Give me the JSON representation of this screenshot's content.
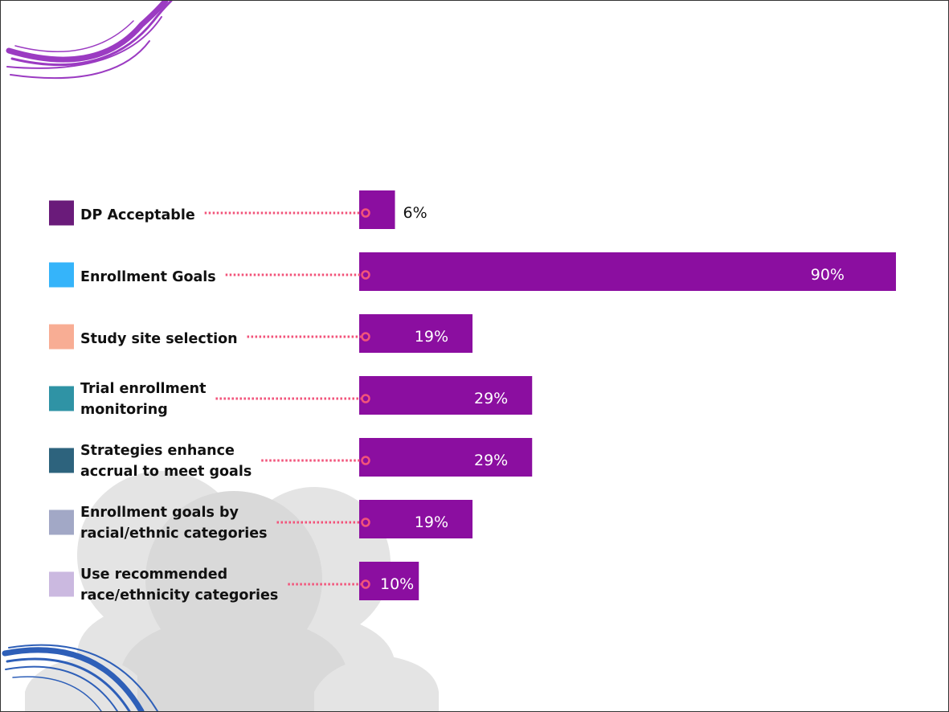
{
  "colors": {
    "bar": "#8B0EA0",
    "connector": "#F2537A",
    "value_inside": "#ffffff",
    "value_outside": "#111111",
    "silhouette": "#e4e4e4",
    "swirl_top": "#9B3BC2",
    "swirl_bottom": "#2E5FB8"
  },
  "icons": [
    "purple-swirl-decoration",
    "blue-swirl-decoration",
    "people-silhouette-background"
  ],
  "chart_data": {
    "type": "bar",
    "orientation": "horizontal",
    "title": "",
    "xlabel": "",
    "ylabel": "",
    "xlim": [
      0,
      100
    ],
    "grid": false,
    "legend_position": "left",
    "categories": [
      {
        "lines": [
          "DP Acceptable"
        ],
        "swatch": "#6A1B7A"
      },
      {
        "lines": [
          "Enrollment Goals"
        ],
        "swatch": "#35B4FA"
      },
      {
        "lines": [
          "Study site selection"
        ],
        "swatch": "#F8AD94"
      },
      {
        "lines": [
          "Trial enrollment",
          "monitoring"
        ],
        "swatch": "#2F93A5"
      },
      {
        "lines": [
          "Strategies enhance",
          "accrual to meet goals"
        ],
        "swatch": "#2D637D"
      },
      {
        "lines": [
          "Enrollment goals by",
          "racial/ethnic categories"
        ],
        "swatch": "#A2A8C6"
      },
      {
        "lines": [
          "Use recommended",
          "race/ethnicity categories"
        ],
        "swatch": "#CBB9E0"
      }
    ],
    "values": [
      6,
      90,
      19,
      29,
      29,
      19,
      10
    ],
    "value_labels": [
      "6%",
      "90%",
      "19%",
      "29%",
      "29%",
      "19%",
      "10%"
    ]
  }
}
